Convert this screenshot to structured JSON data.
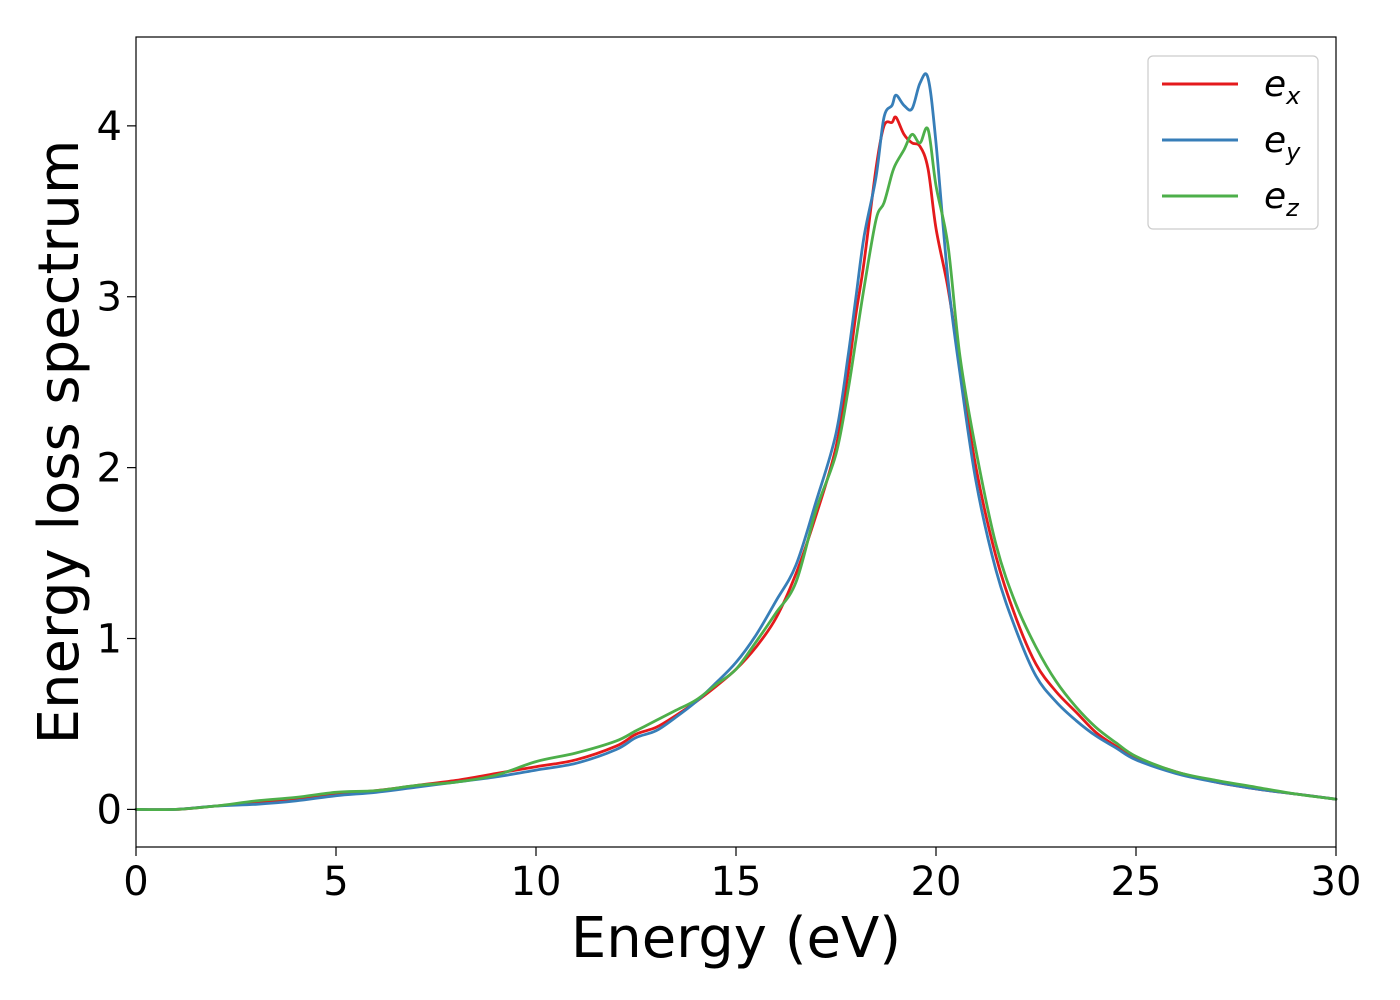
{
  "chart_data": {
    "type": "line",
    "title": "",
    "xlabel": "Energy (eV)",
    "ylabel": "Energy loss spectrum",
    "xlim": [
      0,
      30
    ],
    "ylim": [
      -0.22,
      4.52
    ],
    "xticks": [
      0,
      5,
      10,
      15,
      20,
      25,
      30
    ],
    "xtick_labels": [
      "0",
      "5",
      "10",
      "15",
      "20",
      "25",
      "30"
    ],
    "yticks": [
      0,
      1,
      2,
      3,
      4
    ],
    "ytick_labels": [
      "0",
      "1",
      "2",
      "3",
      "4"
    ],
    "grid": false,
    "legend_position": "top-right",
    "series": [
      {
        "name": "e_x",
        "label_base": "e",
        "label_sub": "x",
        "color": "#e41a1c",
        "x": [
          0,
          1,
          2,
          3,
          4,
          5,
          6,
          7,
          8,
          9,
          10,
          11,
          12,
          12.5,
          13,
          13.5,
          14,
          14.5,
          15,
          15.5,
          16,
          16.5,
          17,
          17.5,
          17.8,
          18,
          18.2,
          18.5,
          18.7,
          18.9,
          19,
          19.2,
          19.4,
          19.6,
          19.8,
          20,
          20.3,
          20.6,
          21,
          21.5,
          22,
          22.5,
          23,
          23.5,
          24,
          24.5,
          25,
          26,
          27,
          28,
          29,
          30
        ],
        "y": [
          0,
          0,
          0.02,
          0.04,
          0.06,
          0.09,
          0.11,
          0.14,
          0.17,
          0.21,
          0.25,
          0.29,
          0.37,
          0.44,
          0.48,
          0.55,
          0.63,
          0.72,
          0.82,
          0.95,
          1.12,
          1.38,
          1.72,
          2.12,
          2.55,
          2.9,
          3.2,
          3.75,
          4.0,
          4.02,
          4.05,
          3.95,
          3.9,
          3.88,
          3.75,
          3.4,
          3.05,
          2.6,
          2.0,
          1.48,
          1.12,
          0.85,
          0.69,
          0.57,
          0.45,
          0.37,
          0.3,
          0.22,
          0.16,
          0.12,
          0.09,
          0.06
        ]
      },
      {
        "name": "e_y",
        "label_base": "e",
        "label_sub": "y",
        "color": "#377eb8",
        "x": [
          0,
          1,
          2,
          3,
          4,
          5,
          6,
          7,
          8,
          9,
          10,
          11,
          12,
          12.5,
          13,
          13.5,
          14,
          14.5,
          15,
          15.5,
          16,
          16.5,
          17,
          17.5,
          17.8,
          18,
          18.2,
          18.5,
          18.7,
          18.9,
          19,
          19.2,
          19.4,
          19.6,
          19.8,
          20,
          20.3,
          20.6,
          21,
          21.5,
          22,
          22.5,
          23,
          23.5,
          24,
          24.5,
          25,
          26,
          27,
          28,
          29,
          30
        ],
        "y": [
          0,
          0,
          0.02,
          0.03,
          0.05,
          0.08,
          0.1,
          0.13,
          0.16,
          0.19,
          0.23,
          0.27,
          0.35,
          0.42,
          0.46,
          0.54,
          0.63,
          0.74,
          0.86,
          1.02,
          1.22,
          1.43,
          1.8,
          2.2,
          2.65,
          3.0,
          3.35,
          3.7,
          4.05,
          4.12,
          4.18,
          4.12,
          4.1,
          4.25,
          4.28,
          3.9,
          3.1,
          2.55,
          1.92,
          1.4,
          1.05,
          0.78,
          0.63,
          0.52,
          0.43,
          0.36,
          0.29,
          0.21,
          0.16,
          0.12,
          0.09,
          0.06
        ]
      },
      {
        "name": "e_z",
        "label_base": "e",
        "label_sub": "z",
        "color": "#4daf4a",
        "x": [
          0,
          1,
          2,
          3,
          4,
          5,
          6,
          7,
          8,
          9,
          10,
          11,
          12,
          12.5,
          13,
          13.5,
          14,
          14.5,
          15,
          15.5,
          16,
          16.5,
          17,
          17.5,
          17.8,
          18,
          18.2,
          18.5,
          18.7,
          18.9,
          19,
          19.2,
          19.4,
          19.6,
          19.8,
          20,
          20.3,
          20.6,
          21,
          21.5,
          22,
          22.5,
          23,
          23.5,
          24,
          24.5,
          25,
          26,
          27,
          28,
          29,
          30
        ],
        "y": [
          0,
          0,
          0.02,
          0.05,
          0.07,
          0.1,
          0.11,
          0.14,
          0.16,
          0.2,
          0.28,
          0.33,
          0.4,
          0.46,
          0.52,
          0.58,
          0.64,
          0.73,
          0.82,
          0.98,
          1.15,
          1.33,
          1.75,
          2.08,
          2.45,
          2.75,
          3.05,
          3.45,
          3.55,
          3.72,
          3.78,
          3.86,
          3.95,
          3.9,
          3.98,
          3.65,
          3.3,
          2.65,
          2.1,
          1.55,
          1.2,
          0.95,
          0.75,
          0.6,
          0.48,
          0.39,
          0.31,
          0.22,
          0.17,
          0.13,
          0.09,
          0.06
        ]
      }
    ]
  }
}
